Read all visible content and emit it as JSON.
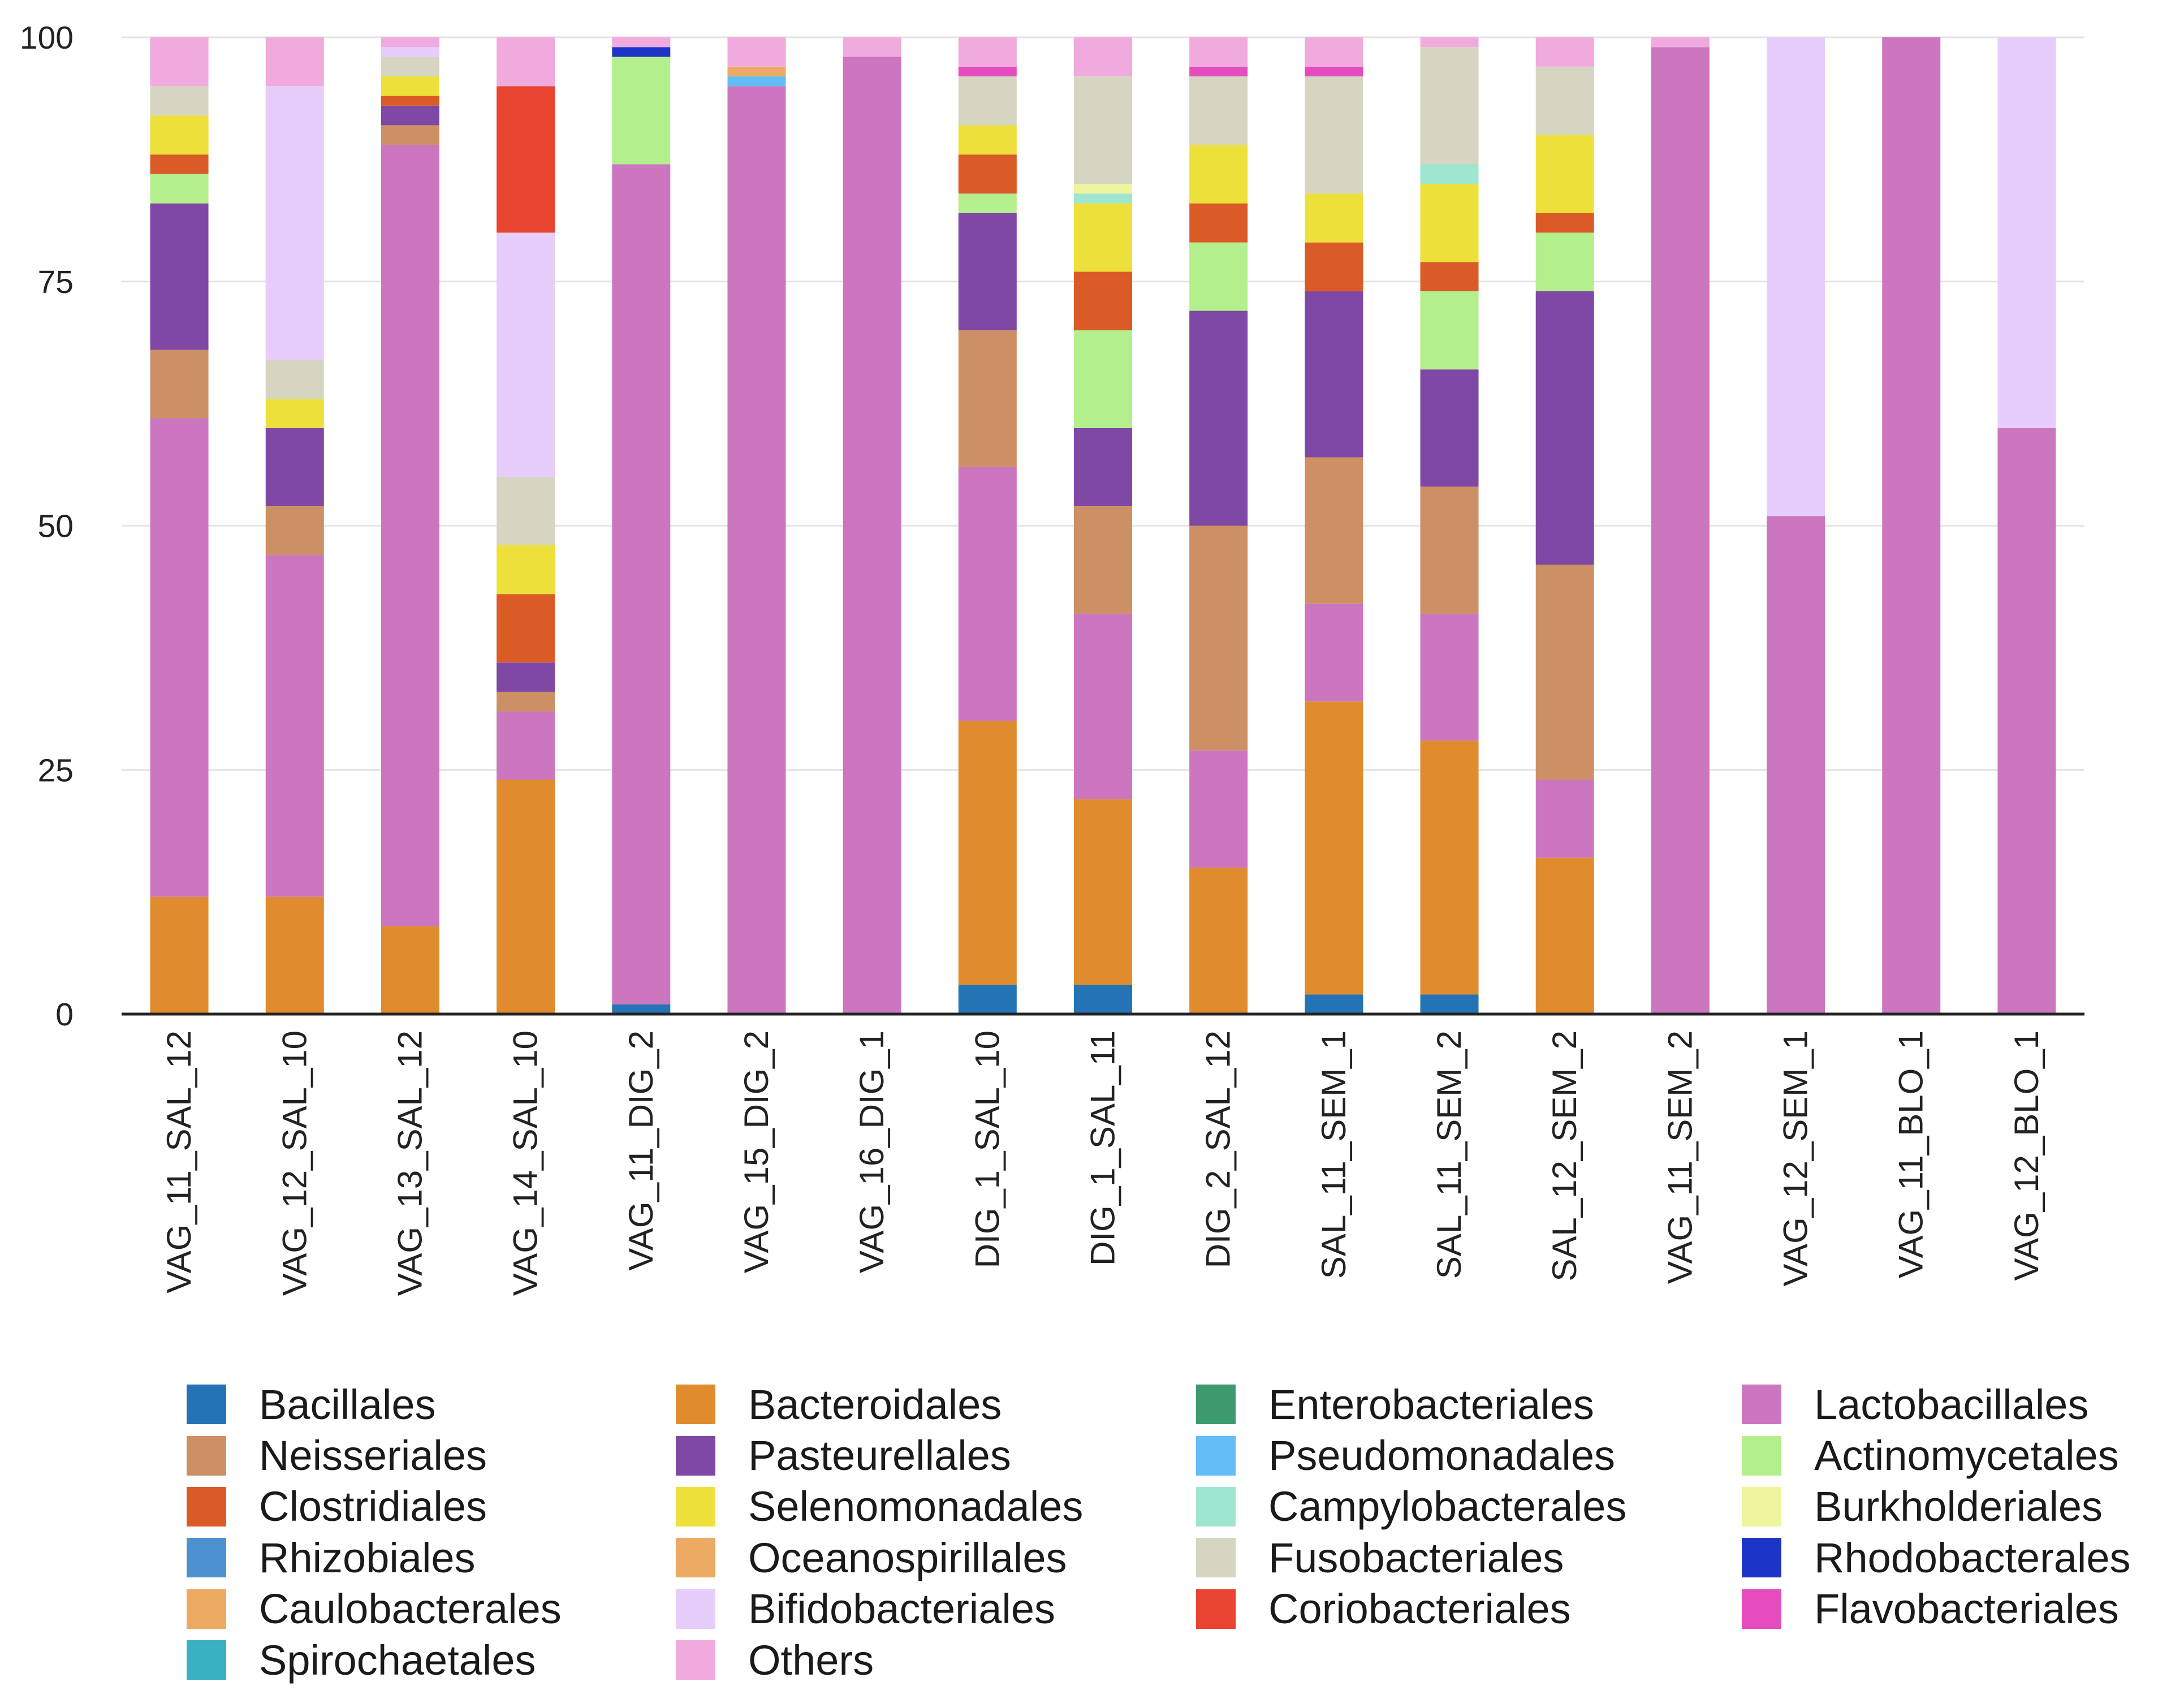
{
  "chart_data": {
    "type": "bar",
    "stacked": true,
    "title": "",
    "xlabel": "",
    "ylabel": "",
    "ylim": [
      0,
      100
    ],
    "yticks": [
      "0",
      "25",
      "50",
      "75",
      "100"
    ],
    "legend_position": "bottom",
    "grid": true,
    "categories": [
      "VAG_11_SAL_12",
      "VAG_12_SAL_10",
      "VAG_13_SAL_12",
      "VAG_14_SAL_10",
      "VAG_11_DIG_2",
      "VAG_15_DIG_2",
      "VAG_16_DIG_1",
      "DIG_1_SAL_10",
      "DIG_1_SAL_11",
      "DIG_2_SAL_12",
      "SAL_11_SEM_1",
      "SAL_11_SEM_2",
      "SAL_12_SEM_2",
      "VAG_11_SEM_2",
      "VAG_12_SEM_1",
      "VAG_11_BLO_1",
      "VAG_12_BLO_1"
    ],
    "series": [
      {
        "name": "Bacillales",
        "color": "#2474b5",
        "values": [
          0,
          0,
          0,
          0,
          1,
          0,
          0,
          3,
          3,
          0,
          2,
          2,
          0,
          0,
          0,
          0,
          0
        ]
      },
      {
        "name": "Bacteroidales",
        "color": "#e08c2e",
        "values": [
          12,
          12,
          9,
          24,
          0,
          0,
          0,
          27,
          19,
          15,
          30,
          26,
          16,
          0,
          0,
          0,
          0
        ]
      },
      {
        "name": "Lactobacillales",
        "color": "#cc76bf",
        "values": [
          49,
          35,
          80,
          7,
          86,
          95,
          98,
          26,
          19,
          12,
          10,
          13,
          8,
          99,
          51,
          100,
          60
        ]
      },
      {
        "name": "Neisseriales",
        "color": "#cc9064",
        "values": [
          7,
          5,
          2,
          2,
          0,
          0,
          0,
          14,
          11,
          23,
          15,
          13,
          22,
          0,
          0,
          0,
          0
        ]
      },
      {
        "name": "Pasteurellales",
        "color": "#7e48a4",
        "values": [
          15,
          8,
          2,
          3,
          0,
          0,
          0,
          12,
          8,
          22,
          17,
          12,
          28,
          0,
          0,
          0,
          0
        ]
      },
      {
        "name": "Actinomycetales",
        "color": "#b4ef8d",
        "values": [
          3,
          0,
          0,
          0,
          11,
          0,
          0,
          2,
          10,
          7,
          0,
          8,
          6,
          0,
          0,
          0,
          0
        ]
      },
      {
        "name": "Clostridiales",
        "color": "#db5b27",
        "values": [
          2,
          0,
          1,
          7,
          0,
          0,
          0,
          4,
          6,
          4,
          5,
          3,
          2,
          0,
          0,
          0,
          0
        ]
      },
      {
        "name": "Selenomonadales",
        "color": "#ede03a",
        "values": [
          4,
          3,
          2,
          5,
          0,
          0,
          0,
          3,
          7,
          6,
          5,
          8,
          8,
          0,
          0,
          0,
          0
        ]
      },
      {
        "name": "Campylobacterales",
        "color": "#9ee6d0",
        "values": [
          0,
          0,
          0,
          0,
          0,
          0,
          0,
          0,
          1,
          0,
          0,
          2,
          0,
          0,
          0,
          0,
          0
        ]
      },
      {
        "name": "Burkholderiales",
        "color": "#eef59c",
        "values": [
          0,
          0,
          0,
          0,
          0,
          0,
          0,
          0,
          1,
          0,
          0,
          0,
          0,
          0,
          0,
          0,
          0
        ]
      },
      {
        "name": "Fusobacteriales",
        "color": "#d5d5c2",
        "values": [
          3,
          4,
          2,
          7,
          0,
          0,
          0,
          5,
          11,
          7,
          12,
          12,
          7,
          0,
          0,
          0,
          0
        ]
      },
      {
        "name": "Bifidobacteriales",
        "color": "#e7cdfb",
        "values": [
          0,
          28,
          1,
          25,
          0,
          0,
          0,
          0,
          0,
          0,
          0,
          0,
          0,
          0,
          49,
          0,
          40
        ]
      },
      {
        "name": "Coriobacteriales",
        "color": "#e94430",
        "values": [
          0,
          0,
          0,
          15,
          0,
          0,
          0,
          0,
          0,
          0,
          0,
          0,
          0,
          0,
          0,
          0,
          0
        ]
      },
      {
        "name": "Rhodobacterales",
        "color": "#1d35c7",
        "values": [
          0,
          0,
          0,
          0,
          1,
          0,
          0,
          0,
          0,
          0,
          0,
          0,
          0,
          0,
          0,
          0,
          0
        ]
      },
      {
        "name": "Pseudomonadales",
        "color": "#64bdf4",
        "values": [
          0,
          0,
          0,
          0,
          0,
          1,
          0,
          0,
          0,
          0,
          0,
          0,
          0,
          0,
          0,
          0,
          0
        ]
      },
      {
        "name": "Caulobacterales",
        "color": "#ecaa63",
        "values": [
          0,
          0,
          0,
          0,
          0,
          1,
          0,
          0,
          0,
          0,
          0,
          0,
          0,
          0,
          0,
          0,
          0
        ]
      },
      {
        "name": "Flavobacteriales",
        "color": "#e54cbd",
        "values": [
          0,
          0,
          0,
          0,
          0,
          0,
          0,
          1,
          0,
          1,
          1,
          0,
          0,
          0,
          0,
          0,
          0
        ]
      },
      {
        "name": "Others",
        "color": "#f0aade",
        "values": [
          5,
          5,
          1,
          5,
          1,
          3,
          2,
          3,
          4,
          3,
          3,
          1,
          3,
          1,
          0,
          0,
          0
        ]
      },
      {
        "name": "Enterobacteriales",
        "color": "#3d9a6f",
        "values": [
          0,
          0,
          0,
          0,
          0,
          0,
          0,
          0,
          0,
          0,
          0,
          0,
          0,
          0,
          0,
          0,
          0
        ]
      },
      {
        "name": "Rhizobiales",
        "color": "#4d91cf",
        "values": [
          0,
          0,
          0,
          0,
          0,
          0,
          0,
          0,
          0,
          0,
          0,
          0,
          0,
          0,
          0,
          0,
          0
        ]
      },
      {
        "name": "Oceanospirillales",
        "color": "#ecaa63",
        "values": [
          0,
          0,
          0,
          0,
          0,
          0,
          0,
          0,
          0,
          0,
          0,
          0,
          0,
          0,
          0,
          0,
          0
        ]
      },
      {
        "name": "Spirochaetales",
        "color": "#3ab0c3",
        "values": [
          0,
          0,
          0,
          0,
          0,
          0,
          0,
          0,
          0,
          0,
          0,
          0,
          0,
          0,
          0,
          0,
          0
        ]
      }
    ]
  },
  "legend": [
    {
      "label": "Bacillales",
      "color": "#2474b5"
    },
    {
      "label": "Bacteroidales",
      "color": "#e08c2e"
    },
    {
      "label": "Enterobacteriales",
      "color": "#3d9a6f"
    },
    {
      "label": "Lactobacillales",
      "color": "#cc76bf"
    },
    {
      "label": "Neisseriales",
      "color": "#cc9064"
    },
    {
      "label": "Pasteurellales",
      "color": "#7e48a4"
    },
    {
      "label": "Pseudomonadales",
      "color": "#64bdf4"
    },
    {
      "label": "Actinomycetales",
      "color": "#b4ef8d"
    },
    {
      "label": "Clostridiales",
      "color": "#db5b27"
    },
    {
      "label": "Selenomonadales",
      "color": "#ede03a"
    },
    {
      "label": "Campylobacterales",
      "color": "#9ee6d0"
    },
    {
      "label": "Burkholderiales",
      "color": "#eef59c"
    },
    {
      "label": "Rhizobiales",
      "color": "#4d91cf"
    },
    {
      "label": "Oceanospirillales",
      "color": "#ecaa63"
    },
    {
      "label": "Fusobacteriales",
      "color": "#d5d5c2"
    },
    {
      "label": "Rhodobacterales",
      "color": "#1d35c7"
    },
    {
      "label": "Caulobacterales",
      "color": "#ecaa63"
    },
    {
      "label": "Bifidobacteriales",
      "color": "#e7cdfb"
    },
    {
      "label": "Coriobacteriales",
      "color": "#e94430"
    },
    {
      "label": "Flavobacteriales",
      "color": "#e54cbd"
    },
    {
      "label": "Spirochaetales",
      "color": "#3ab0c3"
    },
    {
      "label": "Others",
      "color": "#f0aade"
    }
  ]
}
